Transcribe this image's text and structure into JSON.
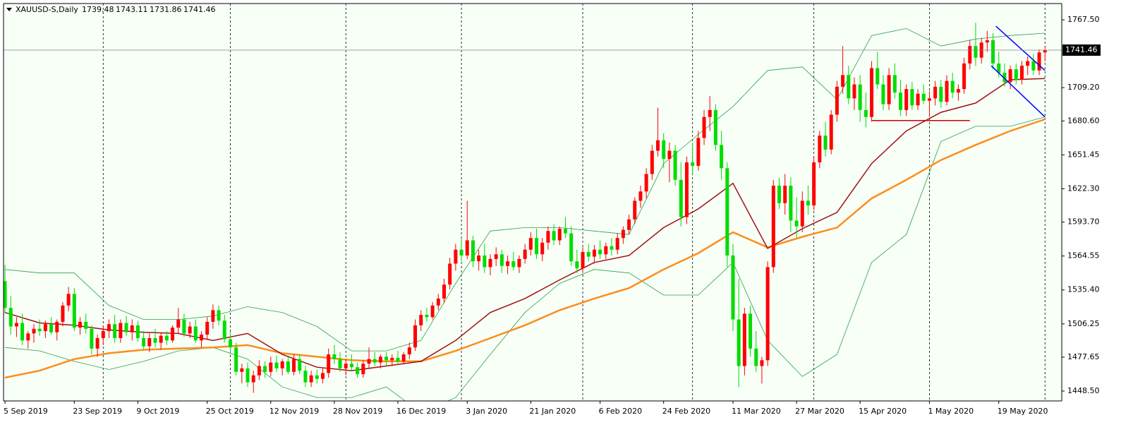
{
  "chart_data": {
    "type": "candlestick",
    "symbol": "XAUUSD-S,Daily",
    "bull_color": "#ff0000",
    "bear_color": "#00dd00",
    "ylim": [
      1440,
      1781.5
    ],
    "xlim": [
      -0.25,
      182.9
    ],
    "yticks": [
      {
        "value": 1448.5,
        "label": "1448.50"
      },
      1477.65,
      1506.25,
      {
        "value": 1535.4,
        "label": "1535.40"
      },
      1564.55,
      {
        "value": 1593.7,
        "label": "1593.70"
      },
      {
        "value": 1622.3,
        "label": "1622.30"
      },
      1651.45,
      {
        "value": 1680.6,
        "label": "1680.60"
      },
      {
        "value": 1709.2,
        "label": "1709.20"
      },
      {
        "value": 1767.5,
        "label": "1767.50"
      }
    ],
    "xticks": [
      {
        "value": 0,
        "label": "5 Sep 2019"
      },
      {
        "value": 12,
        "label": "23 Sep 2019"
      },
      {
        "value": 23,
        "label": "9 Oct 2019"
      },
      {
        "value": 35,
        "label": "25 Oct 2019"
      },
      {
        "value": 46,
        "label": "12 Nov 2019"
      },
      {
        "value": 57,
        "label": "28 Nov 2019"
      },
      {
        "value": 68,
        "label": "16 Dec 2019"
      },
      {
        "value": 80,
        "label": "3 Jan 2020"
      },
      {
        "value": 91,
        "label": "21 Jan 2020"
      },
      {
        "value": 103,
        "label": "6 Feb 2020"
      },
      {
        "value": 114,
        "label": "24 Feb 2020"
      },
      {
        "value": 126,
        "label": "11 Mar 2020"
      },
      {
        "value": 137,
        "label": "27 Mar 2020"
      },
      {
        "value": 148,
        "label": "15 Apr 2020"
      },
      {
        "value": 160,
        "label": "1 May 2020"
      },
      {
        "value": 172,
        "label": "19 May 2020"
      }
    ],
    "separators": [
      17,
      39,
      59,
      79,
      100,
      119,
      140,
      160,
      180
    ],
    "candles": [
      [
        1543,
        1557,
        1515,
        1520
      ],
      [
        1520,
        1530,
        1497,
        1504
      ],
      [
        1504,
        1512,
        1495,
        1507
      ],
      [
        1507,
        1515,
        1488,
        1492
      ],
      [
        1492,
        1500,
        1485,
        1498
      ],
      [
        1498,
        1506,
        1490,
        1502
      ],
      [
        1502,
        1510,
        1496,
        1500
      ],
      [
        1500,
        1509,
        1494,
        1506
      ],
      [
        1506,
        1512,
        1497,
        1499
      ],
      [
        1499,
        1510,
        1492,
        1508
      ],
      [
        1508,
        1525,
        1504,
        1522
      ],
      [
        1522,
        1538,
        1517,
        1532
      ],
      [
        1532,
        1537,
        1500,
        1503
      ],
      [
        1503,
        1512,
        1497,
        1508
      ],
      [
        1508,
        1515,
        1498,
        1502
      ],
      [
        1502,
        1505,
        1480,
        1485
      ],
      [
        1485,
        1497,
        1478,
        1494
      ],
      [
        1494,
        1505,
        1488,
        1500
      ],
      [
        1500,
        1510,
        1494,
        1506
      ],
      [
        1506,
        1514,
        1490,
        1494
      ],
      [
        1494,
        1510,
        1490,
        1507
      ],
      [
        1507,
        1513,
        1496,
        1499
      ],
      [
        1499,
        1510,
        1492,
        1505
      ],
      [
        1505,
        1509,
        1491,
        1494
      ],
      [
        1494,
        1500,
        1484,
        1487
      ],
      [
        1487,
        1498,
        1482,
        1494
      ],
      [
        1494,
        1502,
        1486,
        1490
      ],
      [
        1490,
        1499,
        1484,
        1496
      ],
      [
        1496,
        1500,
        1488,
        1492
      ],
      [
        1492,
        1505,
        1490,
        1503
      ],
      [
        1503,
        1520,
        1498,
        1510
      ],
      [
        1510,
        1515,
        1495,
        1498
      ],
      [
        1498,
        1508,
        1494,
        1504
      ],
      [
        1504,
        1510,
        1490,
        1492
      ],
      [
        1492,
        1500,
        1486,
        1497
      ],
      [
        1497,
        1512,
        1493,
        1508
      ],
      [
        1508,
        1523,
        1502,
        1518
      ],
      [
        1518,
        1522,
        1505,
        1509
      ],
      [
        1509,
        1514,
        1490,
        1493
      ],
      [
        1493,
        1500,
        1480,
        1486
      ],
      [
        1486,
        1490,
        1462,
        1465
      ],
      [
        1465,
        1472,
        1455,
        1468
      ],
      [
        1468,
        1473,
        1452,
        1456
      ],
      [
        1456,
        1466,
        1447,
        1462
      ],
      [
        1462,
        1475,
        1458,
        1470
      ],
      [
        1470,
        1474,
        1460,
        1465
      ],
      [
        1465,
        1478,
        1461,
        1473
      ],
      [
        1473,
        1479,
        1465,
        1468
      ],
      [
        1468,
        1476,
        1462,
        1474
      ],
      [
        1474,
        1478,
        1463,
        1465
      ],
      [
        1465,
        1480,
        1462,
        1476
      ],
      [
        1476,
        1480,
        1463,
        1466
      ],
      [
        1466,
        1470,
        1452,
        1456
      ],
      [
        1456,
        1466,
        1452,
        1462
      ],
      [
        1462,
        1467,
        1455,
        1459
      ],
      [
        1459,
        1468,
        1455,
        1464
      ],
      [
        1464,
        1485,
        1460,
        1480
      ],
      [
        1480,
        1488,
        1472,
        1476
      ],
      [
        1476,
        1482,
        1465,
        1468
      ],
      [
        1468,
        1476,
        1462,
        1472
      ],
      [
        1472,
        1480,
        1466,
        1469
      ],
      [
        1469,
        1473,
        1460,
        1463
      ],
      [
        1463,
        1475,
        1460,
        1472
      ],
      [
        1472,
        1486,
        1468,
        1476
      ],
      [
        1476,
        1482,
        1470,
        1473
      ],
      [
        1473,
        1480,
        1468,
        1478
      ],
      [
        1478,
        1482,
        1470,
        1475
      ],
      [
        1475,
        1480,
        1470,
        1477
      ],
      [
        1477,
        1483,
        1472,
        1474
      ],
      [
        1474,
        1482,
        1472,
        1480
      ],
      [
        1480,
        1490,
        1476,
        1486
      ],
      [
        1486,
        1510,
        1483,
        1505
      ],
      [
        1505,
        1518,
        1500,
        1514
      ],
      [
        1514,
        1520,
        1508,
        1512
      ],
      [
        1512,
        1525,
        1510,
        1522
      ],
      [
        1522,
        1532,
        1518,
        1528
      ],
      [
        1528,
        1545,
        1524,
        1540
      ],
      [
        1540,
        1563,
        1536,
        1558
      ],
      [
        1558,
        1575,
        1552,
        1570
      ],
      [
        1570,
        1580,
        1560,
        1565
      ],
      [
        1565,
        1612,
        1562,
        1578
      ],
      [
        1578,
        1582,
        1555,
        1560
      ],
      [
        1560,
        1570,
        1552,
        1565
      ],
      [
        1565,
        1575,
        1550,
        1555
      ],
      [
        1555,
        1566,
        1548,
        1562
      ],
      [
        1562,
        1572,
        1556,
        1566
      ],
      [
        1566,
        1570,
        1550,
        1556
      ],
      [
        1556,
        1565,
        1549,
        1560
      ],
      [
        1560,
        1568,
        1552,
        1555
      ],
      [
        1555,
        1565,
        1550,
        1562
      ],
      [
        1562,
        1575,
        1558,
        1570
      ],
      [
        1570,
        1585,
        1565,
        1580
      ],
      [
        1580,
        1588,
        1562,
        1566
      ],
      [
        1566,
        1580,
        1560,
        1576
      ],
      [
        1576,
        1590,
        1570,
        1586
      ],
      [
        1586,
        1592,
        1574,
        1578
      ],
      [
        1578,
        1590,
        1574,
        1588
      ],
      [
        1588,
        1598,
        1580,
        1584
      ],
      [
        1584,
        1590,
        1556,
        1560
      ],
      [
        1560,
        1570,
        1550,
        1554
      ],
      [
        1554,
        1572,
        1550,
        1568
      ],
      [
        1568,
        1575,
        1560,
        1564
      ],
      [
        1564,
        1574,
        1558,
        1570
      ],
      [
        1570,
        1578,
        1562,
        1566
      ],
      [
        1566,
        1576,
        1562,
        1573
      ],
      [
        1573,
        1580,
        1565,
        1570
      ],
      [
        1570,
        1584,
        1566,
        1580
      ],
      [
        1580,
        1590,
        1575,
        1587
      ],
      [
        1587,
        1600,
        1583,
        1596
      ],
      [
        1596,
        1615,
        1592,
        1612
      ],
      [
        1612,
        1625,
        1606,
        1620
      ],
      [
        1620,
        1640,
        1614,
        1635
      ],
      [
        1635,
        1660,
        1630,
        1655
      ],
      [
        1655,
        1692,
        1650,
        1664
      ],
      [
        1664,
        1670,
        1640,
        1648
      ],
      [
        1648,
        1662,
        1628,
        1655
      ],
      [
        1655,
        1660,
        1625,
        1630
      ],
      [
        1630,
        1645,
        1590,
        1598
      ],
      [
        1598,
        1650,
        1592,
        1645
      ],
      [
        1645,
        1662,
        1635,
        1642
      ],
      [
        1642,
        1672,
        1638,
        1666
      ],
      [
        1666,
        1690,
        1660,
        1684
      ],
      [
        1684,
        1702,
        1672,
        1690
      ],
      [
        1690,
        1695,
        1655,
        1660
      ],
      [
        1660,
        1672,
        1630,
        1640
      ],
      [
        1640,
        1645,
        1555,
        1565
      ],
      [
        1565,
        1575,
        1500,
        1510
      ],
      [
        1510,
        1545,
        1452,
        1470
      ],
      [
        1470,
        1520,
        1462,
        1515
      ],
      [
        1515,
        1522,
        1478,
        1485
      ],
      [
        1485,
        1500,
        1465,
        1470
      ],
      [
        1470,
        1478,
        1455,
        1475
      ],
      [
        1475,
        1560,
        1470,
        1555
      ],
      [
        1555,
        1630,
        1550,
        1625
      ],
      [
        1625,
        1632,
        1605,
        1610
      ],
      [
        1610,
        1635,
        1600,
        1625
      ],
      [
        1625,
        1632,
        1585,
        1595
      ],
      [
        1595,
        1615,
        1580,
        1590
      ],
      [
        1590,
        1620,
        1585,
        1612
      ],
      [
        1612,
        1625,
        1600,
        1608
      ],
      [
        1608,
        1650,
        1604,
        1645
      ],
      [
        1645,
        1672,
        1640,
        1668
      ],
      [
        1668,
        1680,
        1650,
        1656
      ],
      [
        1656,
        1690,
        1652,
        1686
      ],
      [
        1686,
        1715,
        1680,
        1710
      ],
      [
        1710,
        1745,
        1704,
        1720
      ],
      [
        1720,
        1728,
        1695,
        1700
      ],
      [
        1700,
        1718,
        1690,
        1712
      ],
      [
        1712,
        1720,
        1680,
        1690
      ],
      [
        1690,
        1705,
        1675,
        1684
      ],
      [
        1684,
        1732,
        1680,
        1726
      ],
      [
        1726,
        1740,
        1708,
        1712
      ],
      [
        1712,
        1720,
        1690,
        1695
      ],
      [
        1695,
        1726,
        1690,
        1720
      ],
      [
        1720,
        1730,
        1700,
        1705
      ],
      [
        1705,
        1716,
        1685,
        1690
      ],
      [
        1690,
        1712,
        1685,
        1708
      ],
      [
        1708,
        1714,
        1690,
        1694
      ],
      [
        1694,
        1708,
        1690,
        1704
      ],
      [
        1704,
        1712,
        1695,
        1698
      ],
      [
        1698,
        1706,
        1684,
        1700
      ],
      [
        1700,
        1715,
        1694,
        1710
      ],
      [
        1710,
        1716,
        1692,
        1697
      ],
      [
        1697,
        1720,
        1694,
        1715
      ],
      [
        1715,
        1722,
        1700,
        1705
      ],
      [
        1705,
        1712,
        1698,
        1708
      ],
      [
        1708,
        1735,
        1704,
        1730
      ],
      [
        1730,
        1750,
        1725,
        1745
      ],
      [
        1745,
        1765,
        1728,
        1735
      ],
      [
        1735,
        1752,
        1730,
        1748
      ],
      [
        1748,
        1758,
        1740,
        1750
      ],
      [
        1750,
        1756,
        1725,
        1730
      ],
      [
        1730,
        1740,
        1718,
        1722
      ],
      [
        1722,
        1730,
        1710,
        1714
      ],
      [
        1714,
        1728,
        1708,
        1725
      ],
      [
        1725,
        1730,
        1712,
        1716
      ],
      [
        1716,
        1732,
        1712,
        1728
      ],
      [
        1728,
        1736,
        1720,
        1732
      ],
      [
        1732,
        1738,
        1720,
        1724
      ],
      [
        1724,
        1742,
        1720,
        1739.48
      ],
      [
        1739.48,
        1743.11,
        1731.86,
        1741.46
      ]
    ],
    "indicator_x": [
      0,
      6,
      12,
      18,
      24,
      30,
      36,
      42,
      48,
      54,
      60,
      66,
      72,
      78,
      84,
      90,
      96,
      102,
      108,
      114,
      120,
      126,
      132,
      138,
      144,
      150,
      156,
      162,
      168,
      174,
      180
    ],
    "indicators": [
      {
        "color": "#2e9e4a",
        "width": 0.8,
        "values": [
          1553,
          1550,
          1550,
          1522,
          1510,
          1510,
          1513,
          1521,
          1516,
          1504,
          1483,
          1483,
          1492,
          1541,
          1586,
          1589,
          1589,
          1586,
          1583,
          1644,
          1669,
          1693,
          1724,
          1727,
          1699,
          1754,
          1760,
          1745,
          1751,
          1754,
          1756
        ]
      },
      {
        "color": "#2e9e4a",
        "width": 0.8,
        "values": [
          1486,
          1483,
          1474,
          1467,
          1474,
          1483,
          1486,
          1476,
          1452,
          1443,
          1443,
          1452,
          1430,
          1443,
          1480,
          1516,
          1541,
          1553,
          1550,
          1531,
          1531,
          1559,
          1492,
          1461,
          1480,
          1559,
          1583,
          1663,
          1676,
          1676,
          1684
        ]
      },
      {
        "color": "#ff8c1a",
        "width": 2.5,
        "values": [
          1460,
          1466,
          1476,
          1481,
          1484,
          1485,
          1486,
          1488,
          1481,
          1478,
          1475,
          1474,
          1474,
          1483,
          1494,
          1505,
          1518,
          1528,
          1537,
          1553,
          1567,
          1585,
          1572,
          1581,
          1589,
          1614,
          1630,
          1647,
          1660,
          1672,
          1682
        ]
      },
      {
        "color": "#a01010",
        "width": 1.5,
        "values": [
          1516,
          1507,
          1505,
          1501,
          1499,
          1498,
          1492,
          1498,
          1480,
          1469,
          1466,
          1470,
          1474,
          1492,
          1516,
          1528,
          1544,
          1559,
          1565,
          1589,
          1605,
          1627,
          1571,
          1588,
          1602,
          1644,
          1672,
          1688,
          1696,
          1716,
          1717
        ]
      }
    ],
    "trendlines": [
      {
        "color": "#0000ff",
        "x": [
          171.5,
          180
        ],
        "y": [
          1762,
          1724
        ]
      },
      {
        "color": "#0000ff",
        "x": [
          170.7,
          180
        ],
        "y": [
          1728,
          1684
        ]
      },
      {
        "color": "#cc0000",
        "x": [
          150,
          167
        ],
        "y": [
          1681,
          1681
        ]
      }
    ]
  }
}
